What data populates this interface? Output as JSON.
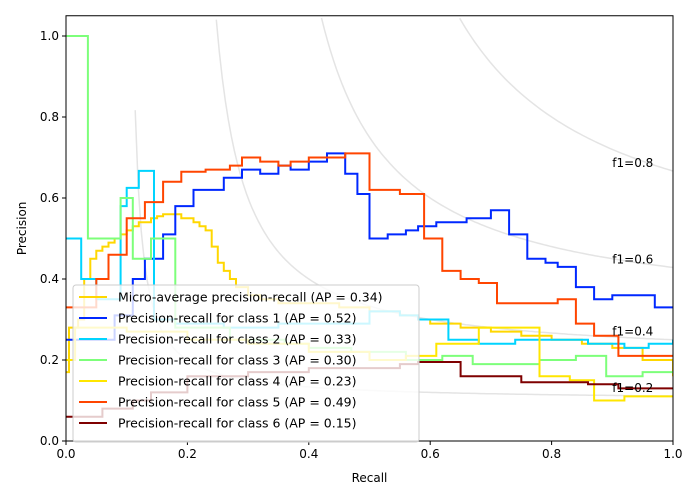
{
  "chart_data": {
    "type": "line",
    "title": "",
    "xlabel": "Recall",
    "ylabel": "Precision",
    "xlim": [
      0.0,
      1.0
    ],
    "ylim": [
      0.0,
      1.05
    ],
    "xticks": [
      "0.0",
      "0.2",
      "0.4",
      "0.6",
      "0.8",
      "1.0"
    ],
    "xtick_values": [
      0.0,
      0.2,
      0.4,
      0.6,
      0.8,
      1.0
    ],
    "yticks": [
      "0.0",
      "0.2",
      "0.4",
      "0.6",
      "0.8",
      "1.0"
    ],
    "ytick_values": [
      0.0,
      0.2,
      0.4,
      0.6,
      0.8,
      1.0
    ],
    "grid": false,
    "legend_position": "lower-left",
    "iso_f1": [
      {
        "f1": 0.2,
        "label": "f1=0.2"
      },
      {
        "f1": 0.4,
        "label": "f1=0.4"
      },
      {
        "f1": 0.6,
        "label": "f1=0.6"
      },
      {
        "f1": 0.8,
        "label": "f1=0.8"
      }
    ],
    "series": [
      {
        "name": "Micro-average precision-recall (AP = 0.34)",
        "color": "#ffd700",
        "style": "step",
        "recall": [
          0.0,
          0.005,
          0.01,
          0.02,
          0.03,
          0.04,
          0.05,
          0.06,
          0.07,
          0.08,
          0.09,
          0.1,
          0.11,
          0.12,
          0.13,
          0.14,
          0.15,
          0.16,
          0.17,
          0.18,
          0.19,
          0.2,
          0.21,
          0.22,
          0.23,
          0.24,
          0.25,
          0.26,
          0.27,
          0.28,
          0.3,
          0.32,
          0.35,
          0.4,
          0.45,
          0.5,
          0.55,
          0.58,
          0.6,
          0.65,
          0.7,
          0.75,
          0.8,
          0.85,
          0.9,
          0.95,
          1.0
        ],
        "precision": [
          0.17,
          0.28,
          0.28,
          0.3,
          0.4,
          0.45,
          0.47,
          0.48,
          0.49,
          0.5,
          0.51,
          0.52,
          0.53,
          0.54,
          0.54,
          0.55,
          0.555,
          0.56,
          0.56,
          0.56,
          0.55,
          0.55,
          0.54,
          0.53,
          0.52,
          0.48,
          0.44,
          0.42,
          0.4,
          0.38,
          0.36,
          0.35,
          0.34,
          0.34,
          0.33,
          0.32,
          0.31,
          0.3,
          0.29,
          0.28,
          0.27,
          0.26,
          0.25,
          0.24,
          0.23,
          0.2,
          0.16
        ]
      },
      {
        "name": "Precision-recall for class 1 (AP = 0.52)",
        "color": "#0028ff",
        "style": "step",
        "recall": [
          0.0,
          0.08,
          0.11,
          0.13,
          0.16,
          0.18,
          0.21,
          0.26,
          0.29,
          0.32,
          0.35,
          0.37,
          0.4,
          0.43,
          0.46,
          0.48,
          0.5,
          0.53,
          0.56,
          0.58,
          0.61,
          0.66,
          0.7,
          0.73,
          0.76,
          0.79,
          0.81,
          0.84,
          0.87,
          0.9,
          0.94,
          0.97,
          1.0
        ],
        "precision": [
          0.25,
          0.31,
          0.4,
          0.45,
          0.51,
          0.58,
          0.62,
          0.65,
          0.67,
          0.66,
          0.68,
          0.67,
          0.69,
          0.71,
          0.66,
          0.61,
          0.5,
          0.51,
          0.52,
          0.53,
          0.54,
          0.55,
          0.57,
          0.51,
          0.45,
          0.44,
          0.43,
          0.38,
          0.35,
          0.36,
          0.36,
          0.33,
          0.33
        ]
      },
      {
        "name": "Precision-recall for class 2 (AP = 0.33)",
        "color": "#00d4ff",
        "style": "step",
        "recall": [
          0.0,
          0.025,
          0.05,
          0.09,
          0.1,
          0.12,
          0.145,
          0.18,
          0.26,
          0.35,
          0.5,
          0.55,
          0.58,
          0.63,
          0.68,
          0.74,
          0.8,
          0.86,
          0.92,
          0.96,
          1.0
        ],
        "precision": [
          0.5,
          0.4,
          0.35,
          0.58,
          0.625,
          0.667,
          0.3,
          0.29,
          0.28,
          0.29,
          0.32,
          0.31,
          0.3,
          0.25,
          0.24,
          0.25,
          0.25,
          0.24,
          0.23,
          0.24,
          0.25
        ]
      },
      {
        "name": "Precision-recall for class 3 (AP = 0.30)",
        "color": "#7dff7a",
        "style": "step",
        "recall": [
          0.0,
          0.036,
          0.07,
          0.09,
          0.11,
          0.14,
          0.18,
          0.27,
          0.36,
          0.4,
          0.47,
          0.56,
          0.62,
          0.67,
          0.71,
          0.78,
          0.84,
          0.89,
          0.95,
          1.0
        ],
        "precision": [
          1.0,
          0.5,
          0.5,
          0.6,
          0.45,
          0.5,
          0.28,
          0.25,
          0.24,
          0.23,
          0.22,
          0.2,
          0.21,
          0.19,
          0.19,
          0.2,
          0.21,
          0.16,
          0.17,
          0.17
        ]
      },
      {
        "name": "Precision-recall for class 4 (AP = 0.23)",
        "color": "#ffe600",
        "style": "step",
        "recall": [
          0.0,
          0.015,
          0.1,
          0.2,
          0.3,
          0.4,
          0.5,
          0.56,
          0.61,
          0.68,
          0.73,
          0.78,
          0.83,
          0.87,
          0.92,
          1.0
        ],
        "precision": [
          0.2,
          0.28,
          0.27,
          0.25,
          0.24,
          0.22,
          0.2,
          0.21,
          0.24,
          0.28,
          0.28,
          0.16,
          0.15,
          0.1,
          0.11,
          0.11
        ]
      },
      {
        "name": "Precision-recall for class 5 (AP = 0.49)",
        "color": "#ff4500",
        "style": "step",
        "recall": [
          0.0,
          0.05,
          0.07,
          0.1,
          0.13,
          0.16,
          0.19,
          0.23,
          0.27,
          0.29,
          0.32,
          0.35,
          0.37,
          0.4,
          0.46,
          0.5,
          0.55,
          0.59,
          0.62,
          0.65,
          0.68,
          0.71,
          0.76,
          0.81,
          0.84,
          0.87,
          0.91,
          0.95,
          1.0
        ],
        "precision": [
          0.33,
          0.4,
          0.46,
          0.55,
          0.59,
          0.64,
          0.665,
          0.67,
          0.68,
          0.7,
          0.69,
          0.68,
          0.69,
          0.7,
          0.71,
          0.62,
          0.61,
          0.5,
          0.42,
          0.4,
          0.39,
          0.34,
          0.34,
          0.35,
          0.29,
          0.26,
          0.21,
          0.21,
          0.21
        ]
      },
      {
        "name": "Precision-recall for class 6 (AP = 0.15)",
        "color": "#7f0000",
        "style": "step",
        "recall": [
          0.0,
          0.06,
          0.11,
          0.14,
          0.2,
          0.3,
          0.4,
          0.5,
          0.55,
          0.58,
          0.65,
          0.7,
          0.75,
          0.8,
          0.86,
          0.91,
          0.95,
          1.0
        ],
        "precision": [
          0.06,
          0.08,
          0.1,
          0.12,
          0.16,
          0.17,
          0.18,
          0.18,
          0.19,
          0.195,
          0.16,
          0.16,
          0.145,
          0.145,
          0.14,
          0.13,
          0.13,
          0.13
        ]
      }
    ]
  }
}
